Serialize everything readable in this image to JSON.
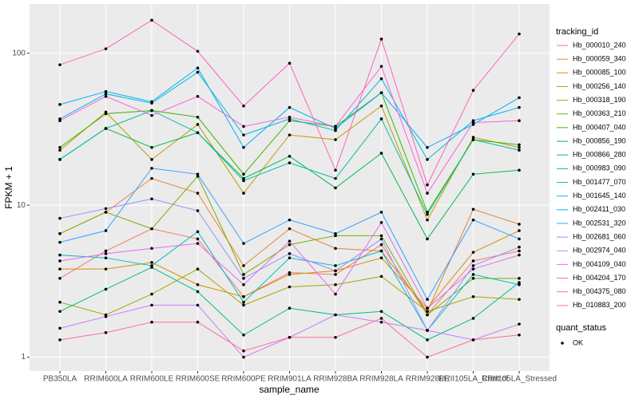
{
  "chart_data": {
    "type": "line",
    "x_label": "sample_name",
    "y_label": "FPKM + 1",
    "legend_title": "tracking_id",
    "point_legend_title": "quant_status",
    "point_legend_label": "OK",
    "categories": [
      "PB350LA",
      "RRIM600LA",
      "RRIM600LE",
      "RRIM600SE",
      "RRIM600PE",
      "RRIM901LA",
      "RRIM928BA",
      "RRIM928LA",
      "RRIM928LE",
      "RRII105LA_Control",
      "RRII105LA_Stressed"
    ],
    "ylim": [
      0.81,
      211
    ],
    "yticks": [
      1,
      10,
      100
    ],
    "log_scale": true,
    "grid": true,
    "legend_position": "right",
    "point_color": "#000000",
    "series": [
      {
        "name": "Hb_000010_240",
        "color": "#F8766D",
        "values": [
          3.3,
          5,
          7,
          6,
          2.5,
          3.6,
          3.5,
          5.5,
          1.9,
          4.3,
          5.0
        ]
      },
      {
        "name": "Hb_000059_340",
        "color": "#EA8331",
        "values": [
          6.5,
          9,
          15,
          12,
          4,
          7,
          5.2,
          5,
          2,
          9.4,
          7.5
        ]
      },
      {
        "name": "Hb_000085_100",
        "color": "#D89000",
        "values": [
          3.8,
          3.8,
          4.2,
          3,
          2.5,
          3.5,
          3.7,
          4.5,
          2.1,
          4.9,
          6.8
        ]
      },
      {
        "name": "Hb_000256_140",
        "color": "#C09B00",
        "values": [
          23,
          41,
          20,
          34,
          12,
          29,
          27,
          45,
          8,
          28,
          24
        ]
      },
      {
        "name": "Hb_000318_190",
        "color": "#A3A500",
        "values": [
          2.3,
          1.9,
          2.6,
          3.8,
          2.2,
          2.9,
          3,
          3.4,
          2,
          2.5,
          2.4
        ]
      },
      {
        "name": "Hb_000363_210",
        "color": "#7CAE00",
        "values": [
          6.5,
          9,
          7,
          15.5,
          3.5,
          5.5,
          6.3,
          6.3,
          1.9,
          3.3,
          3.3
        ]
      },
      {
        "name": "Hb_000407_040",
        "color": "#39B600",
        "values": [
          24,
          40,
          42,
          38,
          16,
          36,
          33,
          55,
          9,
          27,
          25
        ]
      },
      {
        "name": "Hb_000856_190",
        "color": "#00BB4E",
        "values": [
          20,
          32,
          24,
          30,
          15,
          21,
          13,
          22,
          6,
          16,
          17
        ]
      },
      {
        "name": "Hb_000866_280",
        "color": "#00BF7D",
        "values": [
          2,
          2.8,
          3.9,
          2.7,
          1.4,
          2.1,
          1.9,
          2,
          1.3,
          1.8,
          3.1
        ]
      },
      {
        "name": "Hb_000983_090",
        "color": "#00C1A3",
        "values": [
          20,
          32,
          42,
          30,
          14.5,
          19,
          15,
          37,
          8.7,
          27,
          23
        ]
      },
      {
        "name": "Hb_001477_070",
        "color": "#00BFC4",
        "values": [
          4.7,
          4.5,
          4,
          6.7,
          2.3,
          4.5,
          4,
          5,
          1.5,
          3.5,
          3.0
        ]
      },
      {
        "name": "Hb_001645_140",
        "color": "#00BAE0",
        "values": [
          37,
          54,
          47,
          75,
          29,
          37,
          31,
          68,
          20,
          36,
          44
        ]
      },
      {
        "name": "Hb_002411_030",
        "color": "#00B0F6",
        "values": [
          46,
          56,
          48,
          80,
          24,
          44,
          32,
          55,
          24,
          34,
          51
        ]
      },
      {
        "name": "Hb_002531_320",
        "color": "#35A2FF",
        "values": [
          5.7,
          6.8,
          17.5,
          16,
          5.6,
          8,
          6.5,
          9,
          2.4,
          8,
          6
        ]
      },
      {
        "name": "Hb_002681_060",
        "color": "#9590FF",
        "values": [
          8.2,
          9.5,
          11,
          9.2,
          3.3,
          4.8,
          3.7,
          6,
          1.5,
          4,
          5.3
        ]
      },
      {
        "name": "Hb_002974_040",
        "color": "#C77CFF",
        "values": [
          1.55,
          1.85,
          2.2,
          2.2,
          1.0,
          1.35,
          1.9,
          1.7,
          1.5,
          1.3,
          1.65
        ]
      },
      {
        "name": "Hb_004109_040",
        "color": "#E76BF3",
        "values": [
          4.3,
          4.8,
          5.2,
          5.6,
          3.0,
          5.8,
          2.6,
          7.7,
          2.1,
          3.8,
          4.7
        ]
      },
      {
        "name": "Hb_004204_170",
        "color": "#FA62DB",
        "values": [
          36,
          52,
          39,
          52,
          33,
          38,
          33,
          82,
          12,
          35,
          36
        ]
      },
      {
        "name": "Hb_004375_080",
        "color": "#FF62BC",
        "values": [
          84,
          107,
          165,
          103,
          45,
          86,
          17,
          124,
          13.6,
          57,
          134
        ]
      },
      {
        "name": "Hb_010883_200",
        "color": "#FF6C91",
        "values": [
          1.3,
          1.45,
          1.7,
          1.7,
          1.1,
          1.35,
          1.35,
          1.8,
          1.0,
          1.3,
          1.4
        ]
      }
    ]
  }
}
